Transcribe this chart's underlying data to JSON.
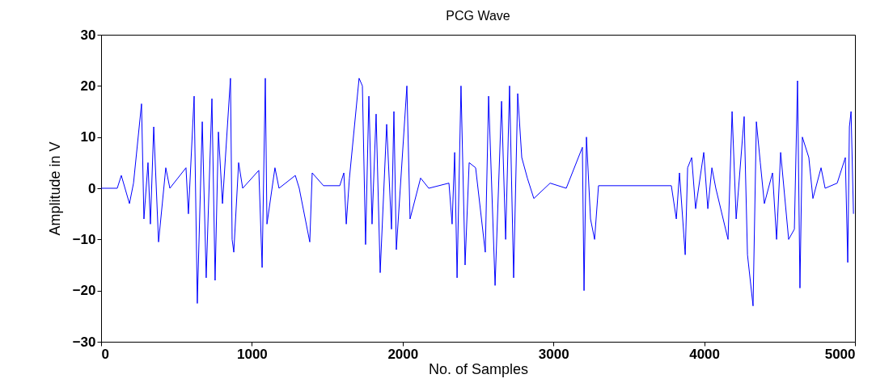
{
  "chart_data": {
    "type": "line",
    "title": "PCG Wave",
    "xlabel": "No. of Samples",
    "ylabel": "Amplitude in V",
    "xlim": [
      0,
      5000
    ],
    "xticks": [
      0,
      1000,
      2000,
      3000,
      4000,
      5000
    ],
    "ylim": [
      -30,
      30
    ],
    "yticks": [
      -30,
      -20,
      -10,
      0,
      10,
      20,
      30
    ],
    "grid": false,
    "line_style": "solid",
    "series": [
      {
        "color": "#0000ff",
        "x": [
          0,
          107,
          134,
          188,
          215,
          268,
          284,
          311,
          327,
          349,
          381,
          429,
          456,
          563,
          579,
          617,
          638,
          671,
          697,
          735,
          756,
          778,
          805,
          858,
          869,
          880,
          912,
          939,
          1046,
          1068,
          1089,
          1100,
          1153,
          1180,
          1288,
          1314,
          1384,
          1400,
          1475,
          1583,
          1610,
          1626,
          1647,
          1711,
          1733,
          1754,
          1776,
          1797,
          1824,
          1851,
          1894,
          1926,
          1942,
          1958,
          2028,
          2049,
          2119,
          2173,
          2307,
          2328,
          2345,
          2361,
          2387,
          2414,
          2441,
          2484,
          2548,
          2570,
          2613,
          2656,
          2683,
          2709,
          2736,
          2763,
          2790,
          2827,
          2870,
          2978,
          3085,
          3192,
          3203,
          3219,
          3246,
          3273,
          3299,
          3782,
          3815,
          3836,
          3874,
          3890,
          3917,
          3943,
          3997,
          4024,
          4051,
          4077,
          4158,
          4185,
          4212,
          4265,
          4287,
          4324,
          4346,
          4372,
          4399,
          4453,
          4480,
          4507,
          4560,
          4598,
          4619,
          4635,
          4651,
          4694,
          4721,
          4775,
          4802,
          4882,
          4936,
          4952,
          4963,
          4974,
          4990
        ],
        "values": [
          0,
          0,
          2.5,
          -3,
          1,
          16.5,
          -6,
          5,
          -7,
          12,
          -10.5,
          4,
          0,
          4,
          -5,
          18,
          -22.5,
          13,
          -17.5,
          17.5,
          -18,
          11,
          -3,
          21.5,
          -10,
          -12.5,
          5,
          0,
          3.5,
          -15.5,
          21.5,
          -7,
          4,
          0,
          2.5,
          0,
          -10.5,
          3,
          0.5,
          0.5,
          3,
          -7,
          2,
          21.5,
          20,
          -11,
          18,
          -7,
          14.5,
          -16.5,
          12.5,
          -8,
          15,
          -12,
          20,
          -6,
          2,
          0,
          1,
          -7,
          7,
          -17.5,
          20,
          -15,
          5,
          4,
          -12.5,
          18,
          -19,
          17,
          -10,
          20,
          -17.5,
          18.5,
          6,
          2,
          -2,
          1,
          0,
          8,
          -20,
          10,
          -6,
          -10,
          0.5,
          0.5,
          -6,
          3,
          -13,
          4,
          6,
          -4,
          7,
          -4,
          4,
          0,
          -10,
          15,
          -6,
          14,
          -13,
          -23,
          13,
          5,
          -3,
          3,
          -10,
          7,
          -10,
          -8,
          21,
          -19.5,
          10,
          6,
          -2,
          4,
          0,
          1,
          6,
          -14.5,
          12,
          15,
          -5
        ]
      }
    ]
  }
}
